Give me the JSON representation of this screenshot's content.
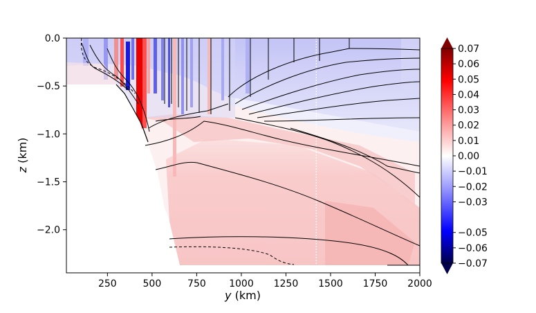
{
  "chart_data": {
    "type": "heatmap",
    "title": "",
    "xlabel_var": "y",
    "xlabel_unit": " (km)",
    "ylabel_var": "z",
    "ylabel_unit": " (km)",
    "xlim": [
      20,
      2000
    ],
    "ylim": [
      -2.45,
      0.0
    ],
    "x_ticks": [
      250,
      500,
      750,
      1000,
      1250,
      1500,
      1750,
      2000
    ],
    "x_tick_labels": [
      "250",
      "500",
      "750",
      "1000",
      "1250",
      "1500",
      "1750",
      "2000"
    ],
    "y_ticks": [
      0.0,
      -0.5,
      -1.0,
      -1.5,
      -2.0
    ],
    "y_tick_labels": [
      "0.0",
      "−0.5",
      "−1.0",
      "−1.5",
      "−2.0"
    ],
    "colorbar": {
      "min": -0.07,
      "max": 0.07,
      "ticks": [
        0.07,
        0.06,
        0.05,
        0.04,
        0.03,
        0.02,
        0.01,
        0.0,
        -0.01,
        -0.02,
        -0.03,
        -0.05,
        -0.06,
        -0.07
      ],
      "tick_labels": [
        "0.07",
        "0.06",
        "0.05",
        "0.04",
        "0.03",
        "0.02",
        "0.01",
        "0.00",
        "−0.01",
        "−0.02",
        "−0.03",
        "−0.05",
        "−0.06",
        "−0.07"
      ],
      "colormap": "seismic",
      "extend": "both"
    },
    "reference_line_x": 1420,
    "bathymetry": [
      [
        100,
        -0.48
      ],
      [
        330,
        -0.55
      ],
      [
        380,
        -0.7
      ],
      [
        430,
        -0.85
      ],
      [
        470,
        -1.1
      ],
      [
        500,
        -1.35
      ],
      [
        530,
        -1.7
      ],
      [
        570,
        -2.1
      ],
      [
        600,
        -2.38
      ]
    ],
    "colors": {
      "positive": "#ff0000",
      "negative": "#0000ff",
      "zero": "#ffffff"
    }
  }
}
